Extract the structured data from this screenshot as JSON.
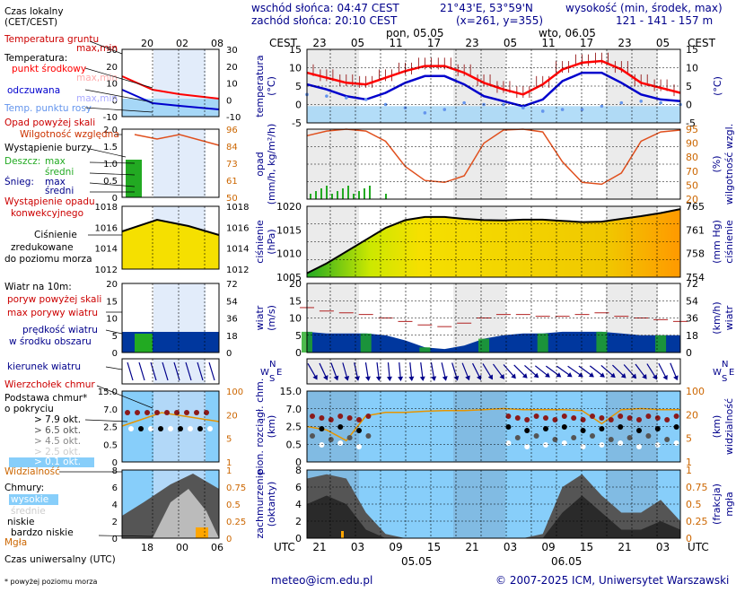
{
  "header": {
    "sunrise": "wschód słońca: 04:47 CEST",
    "sunset": "zachód słońca: 20:10 CEST",
    "coords": "21°43'E, 53°59'N",
    "grid": "(x=261, y=355)",
    "elevation_label": "wysokość (min, środek, max)",
    "elevation_values": "121 - 141 - 157 m"
  },
  "legend": {
    "time_local": "Czas lokalny",
    "time_local_sub": "(CET/CEST)",
    "ground_temp": "Temperatura gruntu",
    "ground_temp_minmax": "max,min",
    "temperature": "Temperatura:",
    "midpoint": "punkt środkowy",
    "temp_maxmin": "max,min",
    "perceived": "odczuwana",
    "perceived_maxmin": "max,min",
    "dewpoint": "Temp. punktu rosy",
    "precip_above_scale": "Opad powyżej skali",
    "humidity": "Wilgotność względna",
    "storm": "Wystąpienie burzy",
    "rain": "Deszcz:",
    "rain_max": "max",
    "rain_mean": "średni",
    "snow": "Śnieg:",
    "snow_max": "max",
    "snow_mean": "średni",
    "conv1": "Wystąpienie opadu",
    "conv2": "konwekcyjnego",
    "pressure1": "Ciśnienie",
    "pressure2": "zredukowane",
    "pressure3": "do poziomu morza",
    "wind10": "Wiatr na 10m:",
    "gust_above": "poryw powyżej skali",
    "max_gusts": "max porywy wiatru",
    "wind_speed": "prędkość wiatru",
    "wind_area": "w środku obszaru",
    "wind_dir": "kierunek wiatru",
    "peak": "Wierzchołek chmur",
    "cloud_base1": "Podstawa chmur*",
    "cloud_base2": "o pokryciu",
    "okt1": "> 7.9 okt.",
    "okt2": "> 6.5 okt.",
    "okt3": "> 4.5 okt.",
    "okt4": "> 2.5 okt.",
    "okt5": "> 0.1 okt.",
    "visibility": "Widzialność",
    "clouds": "Chmury:",
    "high": "wysokie",
    "mid": "średnie",
    "low": "niskie",
    "very_low": "bardzo niskie",
    "fog": "Mgła",
    "utc_title": "Czas uniwersalny (UTC)",
    "footnote": "* powyżej poziomu morza"
  },
  "legend_axes": {
    "top_hours": [
      "20",
      "02",
      "08"
    ],
    "bottom_hours": [
      "18",
      "00",
      "06"
    ],
    "temp_ticks": [
      "30",
      "20",
      "10",
      "0",
      "-10"
    ],
    "precip_ticks": [
      "2.0",
      "1.5",
      "1.0",
      "0.5",
      "0"
    ],
    "hum_ticks": [
      "96",
      "84",
      "73",
      "61",
      "50"
    ],
    "press_ticks": [
      "1018",
      "1016",
      "1014",
      "1012"
    ],
    "wind_ticks": [
      "20",
      "15",
      "10",
      "5",
      "0"
    ],
    "wind_kmh": [
      "72",
      "54",
      "36",
      "18",
      "0"
    ],
    "cb_ticks": [
      "15.0",
      "7.0",
      "2.5",
      "0.5",
      "0"
    ],
    "vis_ticks": [
      "100",
      "20",
      "5",
      "1"
    ],
    "cl_ticks": [
      "8",
      "6",
      "4",
      "2",
      "0"
    ],
    "fog_ticks": [
      "1",
      "0.75",
      "0.5",
      "0.25",
      "0"
    ]
  },
  "main": {
    "cest": "CEST",
    "utc": "UTC",
    "day1": "pon, 05.05",
    "day2": "wto, 06.05",
    "date1": "05.05",
    "date2": "06.05",
    "top_hours": [
      "23",
      "05",
      "11",
      "17",
      "23",
      "05",
      "11",
      "17",
      "23",
      "05"
    ],
    "bottom_hours": [
      "21",
      "03",
      "09",
      "15",
      "21",
      "03",
      "09",
      "15",
      "21",
      "03"
    ],
    "labels": {
      "temp_l": "temperatura",
      "temp_l2": "(°C)",
      "temp_r": "(°C)",
      "precip_l": "opad",
      "precip_l2": "(mm/h, kg/m²/h)",
      "precip_r": "(%)",
      "precip_r2": "wilgotność wzgl.",
      "press_l": "ciśnienie",
      "press_l2": "(hPa)",
      "press_r": "(mm Hg)",
      "press_r2": "ciśnienie",
      "wind_l": "wiatr",
      "wind_l2": "(m/s)",
      "wind_r": "(km/h)",
      "wind_r2": "wiatr",
      "cb_l": "pion. rozciągł. chm.",
      "cb_l2": "(km)",
      "cb_r": "(km)",
      "cb_r2": "widzialność",
      "cl_l": "zachmurzenie",
      "cl_l2": "(oktanty)",
      "cl_r": "(frakcja)",
      "cl_r2": "mgła"
    },
    "temp_ticks": [
      "15",
      "10",
      "5",
      "0",
      "-5"
    ],
    "hum_ticks": [
      "95",
      "90",
      "80",
      "70",
      "50",
      "20"
    ],
    "press_ticks": [
      "1020",
      "1015",
      "1010",
      "1005"
    ],
    "press_mm": [
      "765",
      "761",
      "758",
      "754"
    ],
    "wind_ticks": [
      "20",
      "15",
      "10",
      "5",
      "0"
    ],
    "wind_kmh": [
      "72",
      "54",
      "36",
      "18",
      "0"
    ],
    "cb_ticks": [
      "15.0",
      "7.0",
      "2.5",
      "0.5",
      "0"
    ],
    "vis_ticks": [
      "100",
      "20",
      "5",
      "1"
    ],
    "cl_ticks": [
      "8",
      "6",
      "4",
      "2",
      "0"
    ],
    "fog_ticks": [
      "1",
      "0.75",
      "0.5",
      "0.25",
      "0"
    ]
  },
  "footer": {
    "email": "meteo@icm.edu.pl",
    "copyright": "© 2007-2025 ICM, Uniwersytet Warszawski"
  },
  "colors": {
    "temp_mid": "#ff0000",
    "perceived": "#0000cd",
    "dewpoint": "#6495ed",
    "humidity": "#e0501e",
    "pressure_line": "#000000",
    "gust": "#b22222",
    "wind_fill": "#00379e",
    "axis_blue": "#00008b",
    "axis_orange": "#cc6600",
    "sky": "#87cefa"
  },
  "chart_data": [
    {
      "type": "line",
      "title": "temperatura",
      "ylabel": "(°C)",
      "ylim": [
        -5,
        17
      ],
      "x": [
        "21",
        "00",
        "03",
        "06",
        "09",
        "12",
        "15",
        "18",
        "21",
        "00",
        "03",
        "06",
        "09",
        "12",
        "15",
        "18",
        "21",
        "00",
        "03",
        "06"
      ],
      "series": [
        {
          "name": "punkt środkowy",
          "values": [
            10,
            8.5,
            7,
            6.5,
            8.5,
            10.5,
            12,
            12,
            10,
            7,
            5,
            3.5,
            6.5,
            11,
            13,
            13.5,
            11,
            7,
            5.5,
            4
          ]
        },
        {
          "name": "odczuwana",
          "values": [
            6.5,
            5,
            3,
            2,
            4,
            7,
            9,
            9,
            6.5,
            3,
            1.5,
            0,
            2,
            7.5,
            10,
            10,
            7,
            3.5,
            2,
            1.5
          ]
        },
        {
          "name": "Temp. punktu rosy",
          "values": [
            3.5,
            3,
            2.5,
            2,
            0.5,
            -0.5,
            -2,
            -1,
            1,
            0.5,
            0.5,
            -0.5,
            -1.5,
            -1,
            -1,
            0,
            1,
            1.5,
            1,
            0.5
          ]
        }
      ]
    },
    {
      "type": "line",
      "title": "opad / wilgotność wzgl.",
      "ylim": [
        20,
        95
      ],
      "x": [
        "21",
        "00",
        "03",
        "06",
        "09",
        "12",
        "15",
        "18",
        "21",
        "00",
        "03",
        "06",
        "09",
        "12",
        "15",
        "18",
        "21",
        "00",
        "03",
        "06"
      ],
      "series": [
        {
          "name": "wilgotność wzgl.",
          "values": [
            88,
            93,
            95,
            93,
            82,
            55,
            40,
            38,
            45,
            80,
            94,
            95,
            92,
            60,
            38,
            36,
            48,
            82,
            92,
            94
          ]
        }
      ]
    },
    {
      "type": "line",
      "title": "ciśnienie",
      "ylabel": "(hPa)",
      "ylim": [
        1003,
        1021
      ],
      "x": [
        "21",
        "00",
        "03",
        "06",
        "09",
        "12",
        "15",
        "18",
        "21",
        "00",
        "03",
        "06",
        "09",
        "12",
        "15",
        "18",
        "21",
        "00",
        "03",
        "06"
      ],
      "series": [
        {
          "name": "ciśnienie",
          "values": [
            1004,
            1006.5,
            1009.5,
            1012.5,
            1015.5,
            1017.5,
            1018.3,
            1018.3,
            1017.8,
            1017.5,
            1017.4,
            1017.6,
            1017.6,
            1017.3,
            1017.0,
            1017.1,
            1017.8,
            1018.5,
            1019.3,
            1020.3
          ]
        }
      ]
    },
    {
      "type": "area",
      "title": "wiatr",
      "ylabel": "(m/s)",
      "ylim": [
        0,
        20
      ],
      "x": [
        "21",
        "00",
        "03",
        "06",
        "09",
        "12",
        "15",
        "18",
        "21",
        "00",
        "03",
        "06",
        "09",
        "12",
        "15",
        "18",
        "21",
        "00",
        "03",
        "06"
      ],
      "series": [
        {
          "name": "max porywy wiatru",
          "values": [
            13,
            12,
            11.5,
            11,
            10,
            9,
            8,
            7.5,
            8.5,
            10,
            11,
            11,
            10.5,
            10.5,
            11,
            11.5,
            10.5,
            10,
            9.5,
            9
          ]
        },
        {
          "name": "prędkość wiatru",
          "values": [
            6,
            5.5,
            5.5,
            5.5,
            5,
            3.5,
            1.5,
            1,
            2,
            4,
            5,
            5.5,
            5.5,
            6,
            6,
            6,
            5.5,
            5,
            5,
            5
          ]
        }
      ]
    },
    {
      "type": "line",
      "title": "widzialność",
      "ylabel": "(km)",
      "ylim": [
        1,
        100
      ],
      "x": [
        "21",
        "00",
        "03",
        "06",
        "09",
        "12",
        "15",
        "18",
        "21",
        "00",
        "03",
        "06",
        "09",
        "12",
        "15",
        "18",
        "21",
        "00",
        "03",
        "06"
      ],
      "series": [
        {
          "name": "Widzialność",
          "values": [
            10,
            8,
            4,
            20,
            25,
            25,
            27,
            28,
            28,
            30,
            32,
            30,
            30,
            30,
            28,
            12,
            30,
            32,
            30,
            30
          ]
        }
      ]
    },
    {
      "type": "area",
      "title": "zachmurzenie",
      "ylabel": "(oktanty)",
      "ylim": [
        0,
        8
      ],
      "x": [
        "21",
        "00",
        "03",
        "06",
        "09",
        "12",
        "15",
        "18",
        "21",
        "00",
        "03",
        "06",
        "09",
        "12",
        "15",
        "18",
        "21",
        "00",
        "03",
        "06"
      ],
      "series": [
        {
          "name": "niskie",
          "values": [
            7,
            7.5,
            7,
            3,
            0.5,
            0,
            0,
            0,
            0,
            0,
            0,
            0,
            0.5,
            6,
            7.5,
            5,
            3,
            3,
            4.5,
            2
          ]
        },
        {
          "name": "bardzo niskie",
          "values": [
            4,
            5,
            4,
            1,
            0,
            0,
            0,
            0,
            0,
            0,
            0,
            0,
            0,
            3,
            5,
            3,
            1,
            1,
            2,
            1
          ]
        }
      ]
    }
  ]
}
